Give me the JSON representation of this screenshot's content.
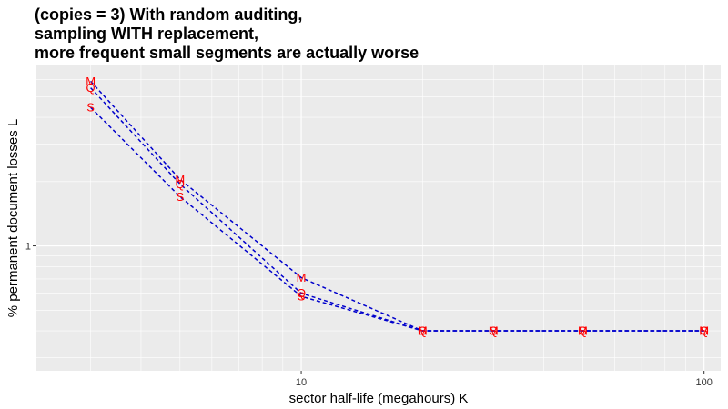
{
  "chart_data": {
    "type": "line",
    "title_lines": [
      "(copies = 3) With random auditing,",
      "sampling WITH replacement,",
      "more frequent small segments are actually worse"
    ],
    "xlabel": "sector half-life (megahours) K",
    "ylabel": "% permanent document losses L",
    "x_scale": "log",
    "y_scale": "log",
    "xlim": [
      2.2,
      110
    ],
    "ylim": [
      0.26,
      7.0
    ],
    "x_ticks": [
      10,
      100
    ],
    "x_tick_labels": [
      "10",
      "100"
    ],
    "y_ticks": [
      1
    ],
    "y_tick_labels": [
      "1"
    ],
    "grid": true,
    "colors": {
      "line": "#0000cc",
      "label": "#ff0000",
      "panel": "#ebebeb",
      "grid": "#ffffff"
    },
    "x": [
      3,
      5,
      10,
      20,
      30,
      50,
      100
    ],
    "series": [
      {
        "marker": "M",
        "values": [
          5.9,
          2.05,
          0.71,
          0.4,
          0.4,
          0.4,
          0.4
        ]
      },
      {
        "marker": "Q",
        "values": [
          5.5,
          1.95,
          0.6,
          0.4,
          0.4,
          0.4,
          0.4
        ]
      },
      {
        "marker": "S",
        "values": [
          4.45,
          1.7,
          0.58,
          0.4,
          0.4,
          0.4,
          0.4
        ]
      }
    ]
  }
}
